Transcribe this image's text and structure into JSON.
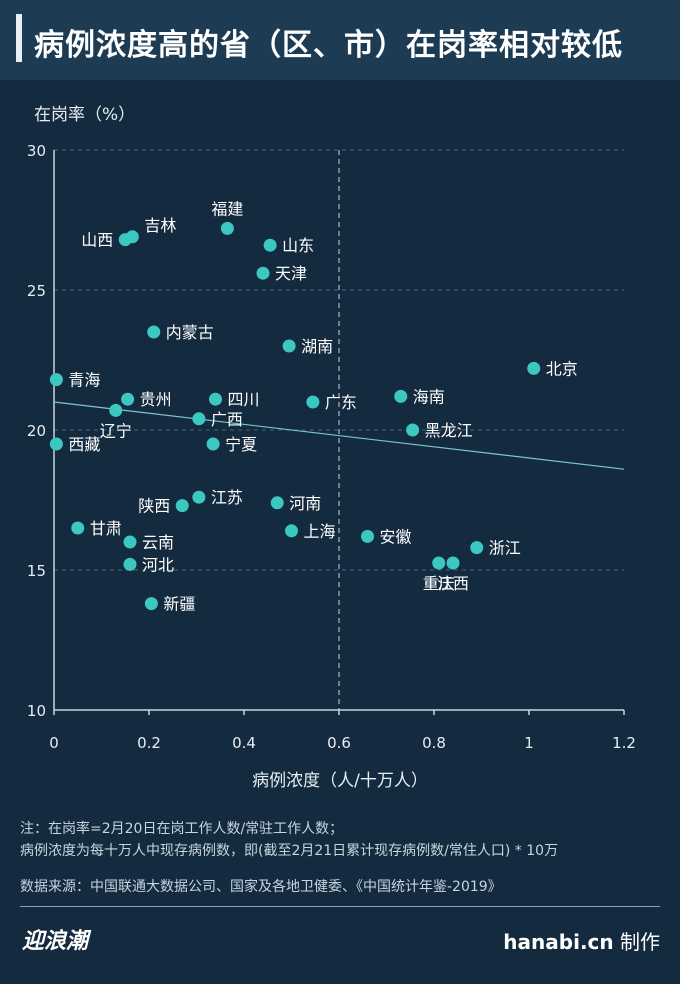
{
  "header": {
    "title": "病例浓度高的省（区、市）在岗率相对较低"
  },
  "chart_data": {
    "type": "scatter",
    "title": "病例浓度高的省（区、市）在岗率相对较低",
    "ylabel": "在岗率（%）",
    "xlabel": "病例浓度（人/十万人）",
    "xlim": [
      0,
      1.2
    ],
    "ylim": [
      10,
      30
    ],
    "x_ticks": [
      0,
      0.2,
      0.4,
      0.6,
      0.8,
      1,
      1.2
    ],
    "x_tick_labels": [
      "0",
      "0.2",
      "0.4",
      "0.6",
      "0.8",
      "1",
      "1.2"
    ],
    "y_ticks": [
      10,
      15,
      20,
      25,
      30
    ],
    "y_tick_labels": [
      "10",
      "15",
      "20",
      "25",
      "30"
    ],
    "reference_line_x": 0.6,
    "trendline": {
      "x": [
        0,
        1.2
      ],
      "y": [
        21.0,
        18.6
      ]
    },
    "grid": "horizontal dashed",
    "point_color": "#3cc8c0",
    "points": [
      {
        "label": "山西",
        "x": 0.15,
        "y": 26.8,
        "label_pos": "left"
      },
      {
        "label": "吉林",
        "x": 0.165,
        "y": 26.9,
        "label_pos": "upper-right"
      },
      {
        "label": "福建",
        "x": 0.365,
        "y": 27.2,
        "label_pos": "top"
      },
      {
        "label": "山东",
        "x": 0.455,
        "y": 26.6,
        "label_pos": "right"
      },
      {
        "label": "天津",
        "x": 0.44,
        "y": 25.6,
        "label_pos": "right"
      },
      {
        "label": "内蒙古",
        "x": 0.21,
        "y": 23.5,
        "label_pos": "right"
      },
      {
        "label": "湖南",
        "x": 0.495,
        "y": 23.0,
        "label_pos": "right"
      },
      {
        "label": "北京",
        "x": 1.01,
        "y": 22.2,
        "label_pos": "right"
      },
      {
        "label": "青海",
        "x": 0.005,
        "y": 21.8,
        "label_pos": "right"
      },
      {
        "label": "贵州",
        "x": 0.155,
        "y": 21.1,
        "label_pos": "right"
      },
      {
        "label": "四川",
        "x": 0.34,
        "y": 21.1,
        "label_pos": "right"
      },
      {
        "label": "海南",
        "x": 0.73,
        "y": 21.2,
        "label_pos": "right"
      },
      {
        "label": "广东",
        "x": 0.545,
        "y": 21.0,
        "label_pos": "right"
      },
      {
        "label": "辽宁",
        "x": 0.13,
        "y": 20.7,
        "label_pos": "below"
      },
      {
        "label": "广西",
        "x": 0.305,
        "y": 20.4,
        "label_pos": "right"
      },
      {
        "label": "黑龙江",
        "x": 0.755,
        "y": 20.0,
        "label_pos": "right"
      },
      {
        "label": "西藏",
        "x": 0.005,
        "y": 19.5,
        "label_pos": "right"
      },
      {
        "label": "宁夏",
        "x": 0.335,
        "y": 19.5,
        "label_pos": "right"
      },
      {
        "label": "江苏",
        "x": 0.305,
        "y": 17.6,
        "label_pos": "right"
      },
      {
        "label": "陕西",
        "x": 0.27,
        "y": 17.3,
        "label_pos": "left"
      },
      {
        "label": "河南",
        "x": 0.47,
        "y": 17.4,
        "label_pos": "right"
      },
      {
        "label": "甘肃",
        "x": 0.05,
        "y": 16.5,
        "label_pos": "right"
      },
      {
        "label": "上海",
        "x": 0.5,
        "y": 16.4,
        "label_pos": "right"
      },
      {
        "label": "安徽",
        "x": 0.66,
        "y": 16.2,
        "label_pos": "right"
      },
      {
        "label": "云南",
        "x": 0.16,
        "y": 16.0,
        "label_pos": "right"
      },
      {
        "label": "浙江",
        "x": 0.89,
        "y": 15.8,
        "label_pos": "right"
      },
      {
        "label": "河北",
        "x": 0.16,
        "y": 15.2,
        "label_pos": "right"
      },
      {
        "label": "重庆",
        "x": 0.81,
        "y": 15.25,
        "label_pos": "below"
      },
      {
        "label": "江西",
        "x": 0.84,
        "y": 15.25,
        "label_pos": "below"
      },
      {
        "label": "新疆",
        "x": 0.205,
        "y": 13.8,
        "label_pos": "right"
      }
    ]
  },
  "notes": {
    "line1": "注：在岗率=2月20日在岗工作人数/常驻工作人数；",
    "line2": "病例浓度为每十万人中现存病例数，即(截至2月21日累计现存病例数/常住人口) * 10万"
  },
  "source": "数据来源：中国联通大数据公司、国家及各地卫健委、《中国统计年鉴-2019》",
  "footer": {
    "logo_text": "迎浪潮",
    "site": "hanabi.cn",
    "credit_suffix": " 制作"
  },
  "colors": {
    "background": "#132a3f",
    "header": "#1e3b54",
    "point": "#3cc8c0",
    "trendline": "#7fc6cc"
  }
}
